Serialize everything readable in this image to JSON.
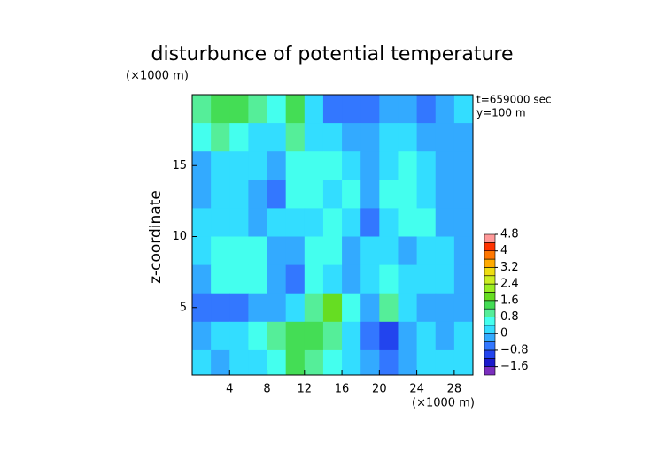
{
  "chart_data": {
    "type": "heatmap",
    "title": "disturbunce of potential temperature",
    "y_unit": "(×1000 m)",
    "x_unit": "(×1000 m)",
    "ylabel": "z-coordinate",
    "annotations": [
      "t=659000 sec",
      "y=100 m"
    ],
    "xlim": [
      0,
      30
    ],
    "ylim": [
      0.25,
      20
    ],
    "xticks": [
      4,
      8,
      12,
      16,
      20,
      24,
      28
    ],
    "yticks": [
      5,
      10,
      15
    ],
    "x": [
      1,
      3,
      5,
      7,
      9,
      11,
      13,
      15,
      17,
      19,
      21,
      23,
      25,
      27,
      29
    ],
    "y": [
      19,
      17,
      15,
      13,
      11,
      9,
      7,
      5,
      3,
      1
    ],
    "z": [
      [
        0.8,
        1.2,
        1.2,
        0.8,
        0.4,
        1.2,
        0,
        -0.8,
        -0.8,
        -0.8,
        -0.4,
        -0.4,
        -0.8,
        -0.4,
        0
      ],
      [
        0.4,
        0.8,
        0.4,
        0,
        0,
        0.8,
        0,
        0,
        -0.4,
        -0.4,
        0,
        0,
        -0.4,
        -0.4,
        -0.4
      ],
      [
        -0.4,
        0,
        0,
        0,
        -0.4,
        0.4,
        0.4,
        0.4,
        0,
        -0.4,
        0,
        0.4,
        0,
        -0.4,
        -0.4
      ],
      [
        -0.4,
        0,
        0,
        -0.4,
        -0.8,
        0.4,
        0.4,
        0,
        0.4,
        -0.4,
        0.4,
        0.4,
        0,
        -0.4,
        -0.4
      ],
      [
        0,
        0,
        0,
        -0.4,
        0,
        0,
        0,
        0.4,
        0,
        -0.8,
        0,
        0.4,
        0.4,
        -0.4,
        -0.4
      ],
      [
        0,
        0.4,
        0.4,
        0.4,
        -0.4,
        -0.4,
        0.4,
        0.4,
        -0.4,
        0,
        0,
        -0.4,
        0,
        0,
        -0.4
      ],
      [
        -0.4,
        0.4,
        0.4,
        0.4,
        -0.4,
        -0.8,
        0.4,
        0,
        -0.4,
        0,
        0.4,
        0,
        0,
        0,
        -0.4
      ],
      [
        -0.8,
        -0.8,
        -0.8,
        -0.4,
        -0.4,
        0,
        0.8,
        1.6,
        0.4,
        -0.4,
        0.8,
        0,
        -0.4,
        -0.4,
        -0.4
      ],
      [
        -0.4,
        0,
        0,
        0.4,
        0.8,
        1.2,
        1.2,
        0.8,
        0,
        -0.8,
        -1.2,
        -0.4,
        0,
        -0.4,
        0
      ],
      [
        0,
        -0.4,
        0,
        0,
        0.4,
        1.2,
        0.8,
        0.4,
        0,
        -0.4,
        -0.8,
        -0.4,
        0,
        0,
        0
      ]
    ],
    "colorbar": {
      "lim": [
        -2.0,
        4.8
      ],
      "step": 0.4,
      "colors": [
        "#7b2fbe",
        "#1a1acc",
        "#2244ee",
        "#3377ff",
        "#33aaff",
        "#33ddff",
        "#44ffee",
        "#55ee99",
        "#44dd55",
        "#66dd22",
        "#99ee22",
        "#ccee22",
        "#eedd11",
        "#ffaa00",
        "#ff7700",
        "#ff3300",
        "#ff9999"
      ],
      "ticks": [
        4.8,
        4,
        3.2,
        2.4,
        1.6,
        0.8,
        0,
        {
          "value": -0.8,
          "label": "−0.8"
        },
        {
          "value": -1.6,
          "label": "−1.6"
        }
      ]
    }
  }
}
